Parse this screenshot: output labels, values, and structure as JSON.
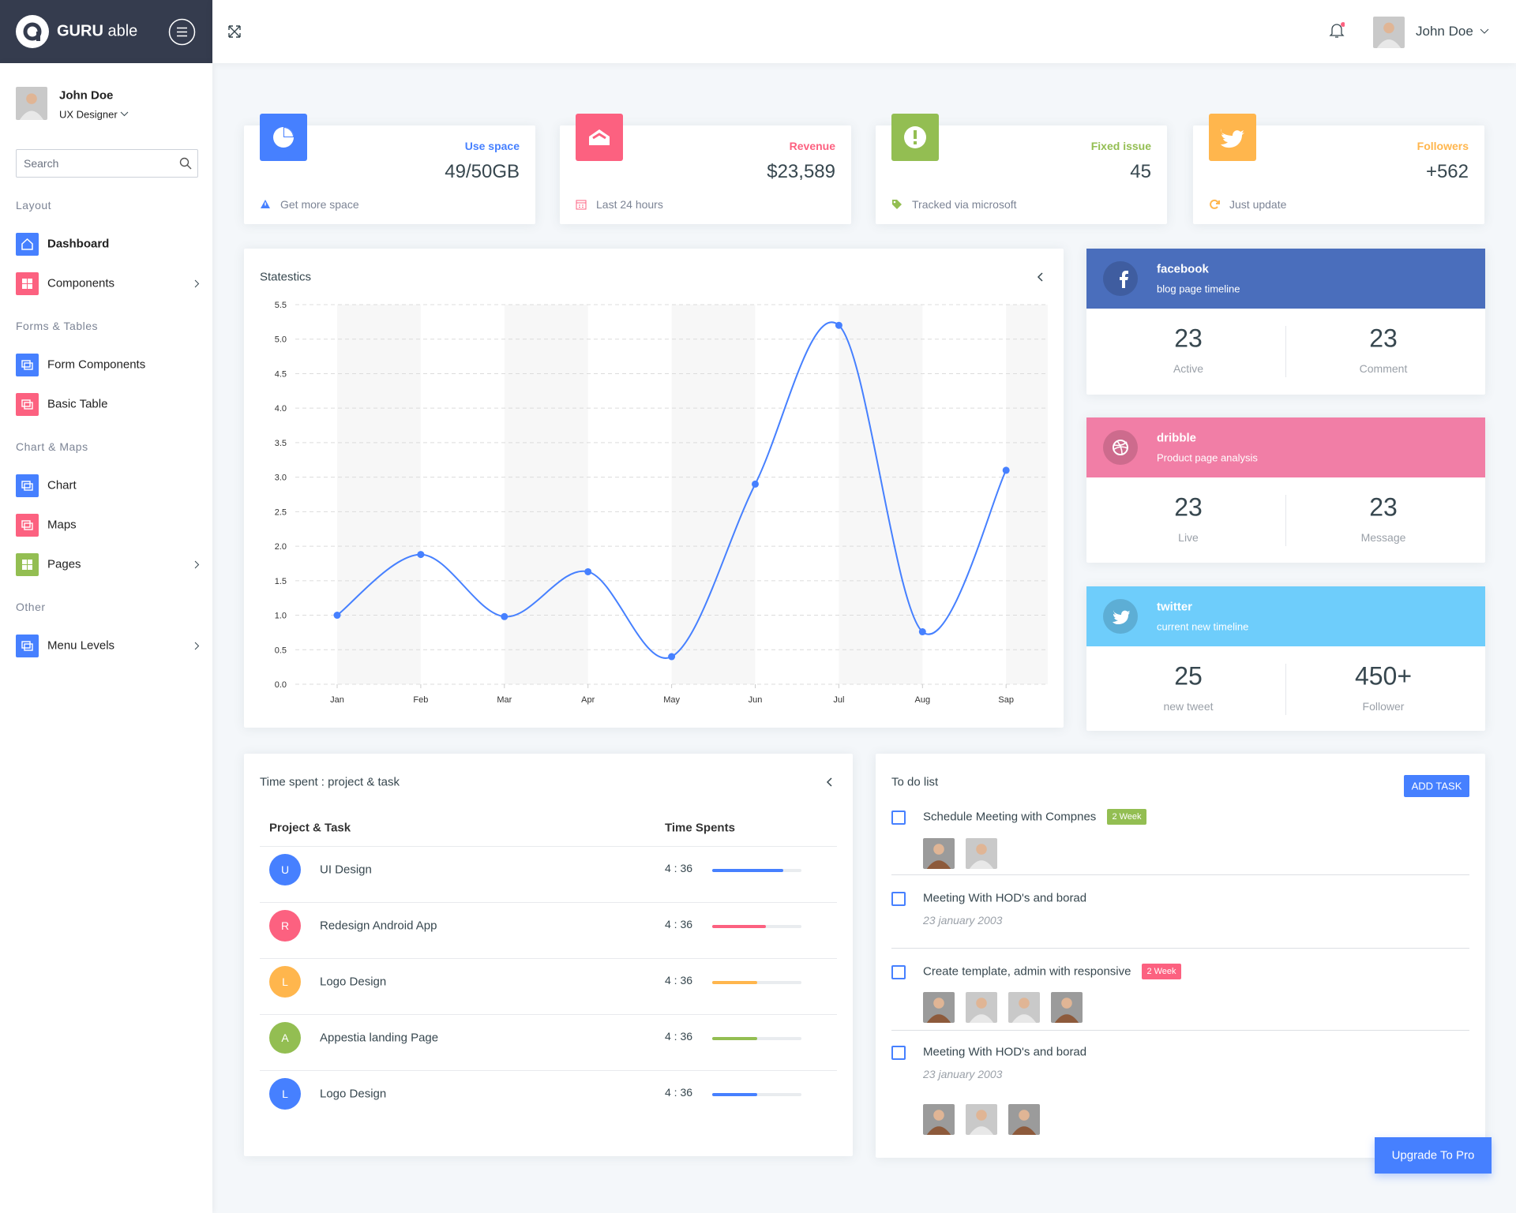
{
  "header": {
    "brand_bold": "GURU",
    "brand_light": "able",
    "user": "John Doe"
  },
  "sidebar": {
    "user": {
      "name": "John Doe",
      "role": "UX Designer"
    },
    "search_placeholder": "Search",
    "sections": [
      {
        "title": "Layout",
        "items": [
          {
            "label": "Dashboard"
          },
          {
            "label": "Components"
          }
        ]
      },
      {
        "title": "Forms & Tables",
        "items": [
          {
            "label": "Form Components"
          },
          {
            "label": "Basic Table"
          }
        ]
      },
      {
        "title": "Chart & Maps",
        "items": [
          {
            "label": "Chart"
          },
          {
            "label": "Maps"
          },
          {
            "label": "Pages"
          }
        ]
      },
      {
        "title": "Other",
        "items": [
          {
            "label": "Menu Levels"
          }
        ]
      }
    ]
  },
  "stats": [
    {
      "label": "Use space",
      "value": "49/50GB",
      "footer": "Get more space"
    },
    {
      "label": "Revenue",
      "value": "$23,589",
      "footer": "Last 24 hours"
    },
    {
      "label": "Fixed issue",
      "value": "45",
      "footer": "Tracked via microsoft"
    },
    {
      "label": "Followers",
      "value": "+562",
      "footer": "Just update"
    }
  ],
  "statistics": {
    "title": "Statestics",
    "chart": {
      "type": "line",
      "categories": [
        "Jan",
        "Feb",
        "Mar",
        "Apr",
        "May",
        "Jun",
        "Jul",
        "Aug",
        "Sap"
      ],
      "values": [
        1.0,
        1.88,
        0.98,
        1.63,
        0.4,
        2.9,
        5.2,
        0.76,
        3.1
      ],
      "color": "#4680ff",
      "ylim": [
        0,
        5.5
      ],
      "yticks": [
        {
          "value": 0,
          "label": "0.0"
        },
        0.5,
        {
          "value": 1,
          "label": "1.0"
        },
        1.5,
        {
          "value": 2,
          "label": "2.0"
        },
        2.5,
        {
          "value": 3,
          "label": "3.0"
        },
        3.5,
        {
          "value": 4,
          "label": "4.0"
        },
        4.5,
        {
          "value": 5,
          "label": "5.0"
        },
        5.5
      ],
      "grid": true
    }
  },
  "social": [
    {
      "name": "facebook",
      "subtitle": "blog page timeline",
      "stats": [
        {
          "value": "23",
          "label": "Active"
        },
        {
          "value": "23",
          "label": "Comment"
        }
      ]
    },
    {
      "name": "dribble",
      "subtitle": "Product page analysis",
      "stats": [
        {
          "value": "23",
          "label": "Live"
        },
        {
          "value": "23",
          "label": "Message"
        }
      ]
    },
    {
      "name": "twitter",
      "subtitle": "current new timeline",
      "stats": [
        {
          "value": "25",
          "label": "new tweet"
        },
        {
          "value": "450+",
          "label": "Follower"
        }
      ]
    }
  ],
  "time_spent": {
    "title": "Time spent : project & task",
    "columns": [
      "Project & Task",
      "Time Spents"
    ],
    "rows": [
      {
        "initial": "U",
        "name": "UI Design",
        "time": "4 : 36",
        "progress": 80
      },
      {
        "initial": "R",
        "name": "Redesign Android App",
        "time": "4 : 36",
        "progress": 60
      },
      {
        "initial": "L",
        "name": "Logo Design",
        "time": "4 : 36",
        "progress": 50
      },
      {
        "initial": "A",
        "name": "Appestia landing Page",
        "time": "4 : 36",
        "progress": 50
      },
      {
        "initial": "L",
        "name": "Logo Design",
        "time": "4 : 36",
        "progress": 50
      }
    ]
  },
  "todo": {
    "title": "To do list",
    "button": "ADD TASK",
    "items": [
      {
        "text": "Schedule Meeting with Compnes",
        "badge": "2 Week"
      },
      {
        "text": "Meeting With HOD's and borad",
        "date": "23 january 2003"
      },
      {
        "text": "Create template, admin with responsive",
        "badge": "2 Week"
      },
      {
        "text": "Meeting With HOD's and borad",
        "date": "23 january 2003"
      }
    ]
  },
  "upgrade": "Upgrade To Pro"
}
